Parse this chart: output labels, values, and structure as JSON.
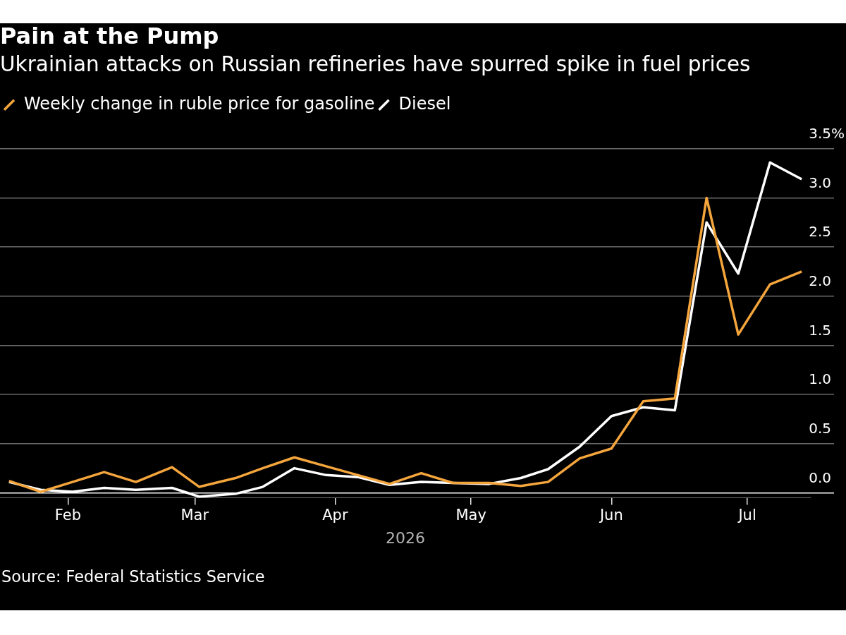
{
  "chart_data": {
    "type": "line",
    "title": "Pain at the Pump",
    "subtitle": "Ukrainian attacks on Russian refineries have spurred spike in fuel prices",
    "xlabel": "2026",
    "legend": "top left",
    "grid": "y",
    "line_style": "solid",
    "x": [
      "2026-01-19",
      "2026-01-26",
      "2026-02-02",
      "2026-02-09",
      "2026-02-16",
      "2026-02-24",
      "2026-03-02",
      "2026-03-10",
      "2026-03-16",
      "2026-03-23",
      "2026-03-30",
      "2026-04-06",
      "2026-04-13",
      "2026-04-20",
      "2026-04-27",
      "2026-05-05",
      "2026-05-12",
      "2026-05-18",
      "2026-05-25",
      "2026-06-01",
      "2026-06-08",
      "2026-06-15",
      "2026-06-22",
      "2026-06-29",
      "2026-07-06",
      "2026-07-13"
    ],
    "xlim": [
      "2026-01-17",
      "2026-07-15"
    ],
    "xticks": [
      {
        "value": "2026-02-01",
        "label": "Feb"
      },
      {
        "value": "2026-03-01",
        "label": "Mar"
      },
      {
        "value": "2026-04-01",
        "label": "Apr"
      },
      {
        "value": "2026-05-01",
        "label": "May"
      },
      {
        "value": "2026-06-01",
        "label": "Jun"
      },
      {
        "value": "2026-07-01",
        "label": "Jul"
      }
    ],
    "ylim": [
      -0.05,
      3.5
    ],
    "yticks": [
      {
        "value": 0,
        "label": "0.0"
      },
      0.5,
      {
        "value": 1,
        "label": "1.0"
      },
      1.5,
      {
        "value": 2,
        "label": "2.0"
      },
      2.5,
      {
        "value": 3,
        "label": "3.0"
      },
      {
        "value": 3.5,
        "label": "3.5%"
      }
    ],
    "series": [
      {
        "name": "Weekly change in ruble price for gasoline",
        "color": "#f4a53c",
        "values": [
          0.12,
          0.01,
          0.11,
          0.21,
          0.11,
          0.26,
          0.06,
          0.15,
          0.25,
          0.36,
          0.27,
          0.18,
          0.09,
          0.2,
          0.1,
          0.1,
          0.07,
          0.11,
          0.35,
          0.45,
          0.93,
          0.96,
          3.0,
          1.61,
          2.12,
          2.25
        ]
      },
      {
        "name": "Diesel",
        "color": "#ffffff",
        "values": [
          0.11,
          0.03,
          0.01,
          0.05,
          0.03,
          0.05,
          -0.04,
          -0.01,
          0.06,
          0.25,
          0.18,
          0.16,
          0.08,
          0.11,
          0.1,
          0.09,
          0.15,
          0.24,
          0.47,
          0.78,
          0.87,
          0.84,
          2.75,
          2.23,
          3.36,
          3.19
        ]
      }
    ],
    "annotations": [
      "Source: Federal Statistics Service"
    ]
  }
}
